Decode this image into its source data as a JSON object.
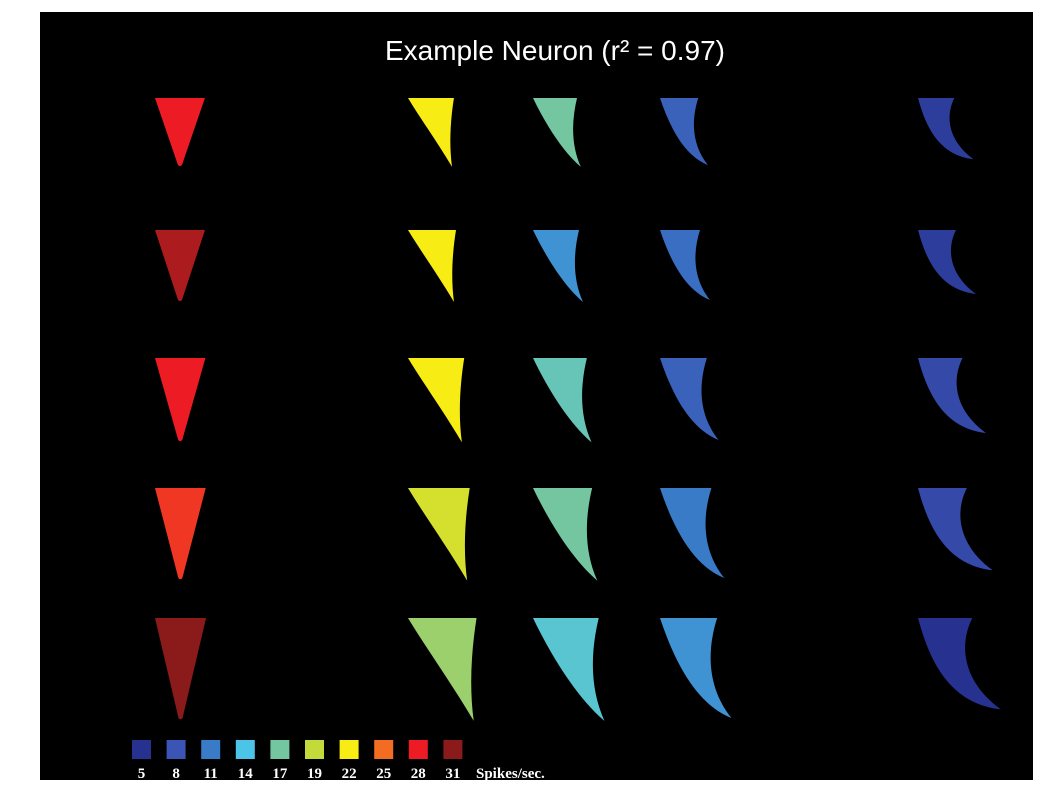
{
  "figure": {
    "title": "Example Neuron (r² = 0.97)",
    "rows": [
      [
        28,
        22,
        17,
        9,
        6
      ],
      [
        30,
        22,
        12,
        10,
        6
      ],
      [
        28,
        22,
        16,
        9,
        7
      ],
      [
        27,
        20,
        17,
        11,
        7
      ],
      [
        31,
        18,
        15,
        12,
        5
      ]
    ],
    "legend": {
      "values": [
        5,
        8,
        11,
        14,
        17,
        19,
        22,
        25,
        28,
        31
      ],
      "colors": [
        "#27318f",
        "#3a55b5",
        "#3a7bc8",
        "#4cc4e8",
        "#74c6a0",
        "#c4d93a",
        "#f7ec14",
        "#f26c22",
        "#ed1c24",
        "#8b1a1a"
      ],
      "unit": "Spikes/sec."
    }
  }
}
